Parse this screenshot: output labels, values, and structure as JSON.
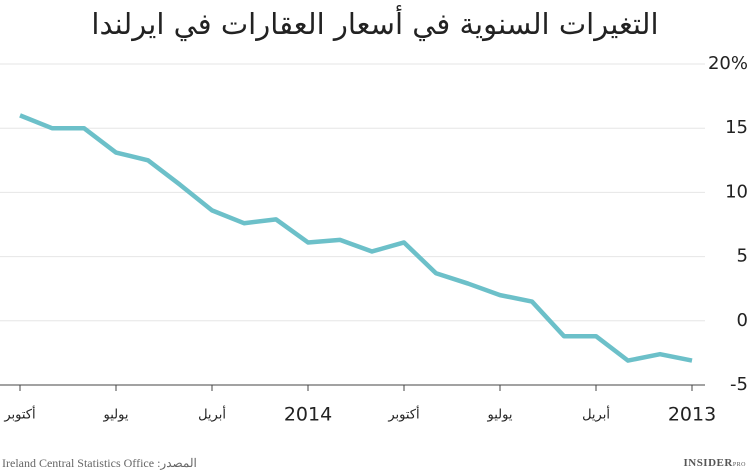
{
  "chart_data": {
    "type": "line",
    "title": "التغيرات السنوية في أسعار العقارات في ايرلندا",
    "categories": [
      "أكتوبر",
      null,
      null,
      "يوليو",
      null,
      null,
      "أبريل",
      null,
      null,
      "2014",
      null,
      null,
      "أكتوبر",
      null,
      null,
      "يوليو",
      null,
      null,
      "أبريل",
      null,
      null,
      "2013"
    ],
    "values": [
      16.0,
      15.0,
      15.0,
      13.1,
      12.5,
      10.6,
      8.6,
      7.6,
      7.9,
      6.1,
      6.3,
      5.4,
      6.1,
      3.7,
      2.9,
      2.0,
      1.5,
      -1.2,
      -1.2,
      -3.1,
      -2.6,
      -3.1
    ],
    "color": "#6cc0c9",
    "ylim": [
      -5,
      20
    ],
    "yticks": [
      -5,
      0,
      5,
      10,
      15,
      {
        "value": 20,
        "label": "20%"
      }
    ],
    "grid": true
  },
  "source": "المصدر: Ireland Central Statistics Office",
  "logo": {
    "name": "INSIDER",
    "suffix": "PRO"
  }
}
